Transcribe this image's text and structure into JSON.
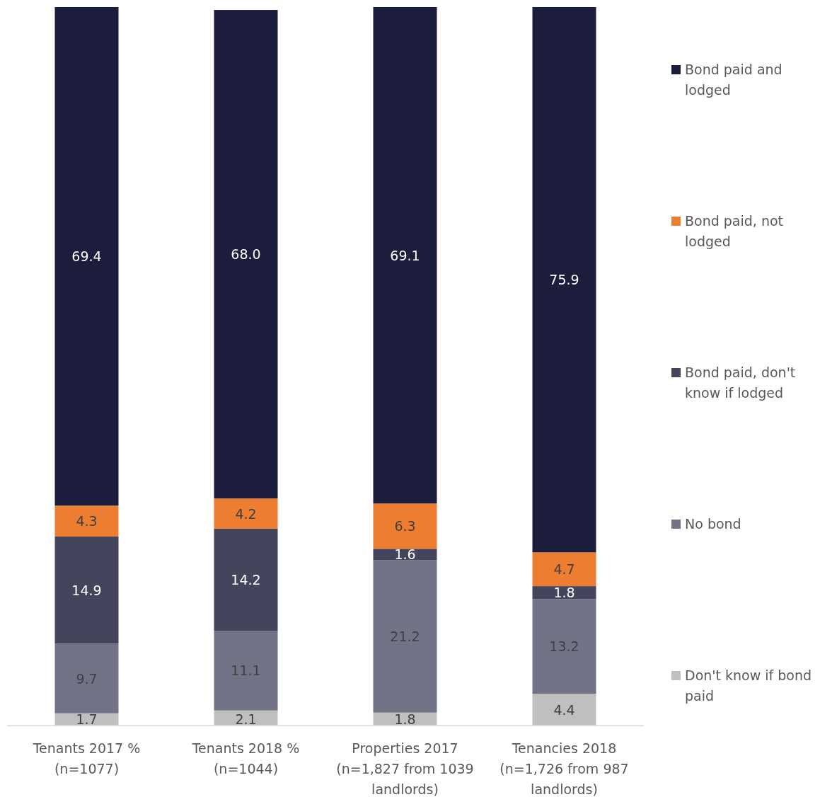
{
  "chart_data": {
    "type": "bar",
    "stacked": true,
    "legend": "right",
    "ylim": [
      0,
      100
    ],
    "categories": [
      "Tenants 2017 % (n=1077)",
      "Tenants 2018 % (n=1044)",
      "Properties 2017 (n=1,827 from 1039 landlords)",
      "Tenancies 2018 (n=1,726 from 987 landlords)"
    ],
    "series": [
      {
        "name": "Don't know if bond paid",
        "color": "#bfbfbf",
        "values": [
          1.7,
          2.1,
          1.8,
          4.4
        ],
        "value_labels": [
          "1.7",
          "2.1",
          "1.8",
          "4.4"
        ]
      },
      {
        "name": "No bond",
        "color": "#737387",
        "values": [
          9.7,
          11.1,
          21.2,
          13.2
        ],
        "value_labels": [
          "9.7",
          "11.1",
          "21.2",
          "13.2"
        ]
      },
      {
        "name": "Bond paid, don't know if lodged",
        "color": "#44445c",
        "values": [
          14.9,
          14.2,
          1.6,
          1.8
        ],
        "value_labels": [
          "14.9",
          "14.2",
          "1.6",
          "1.8"
        ]
      },
      {
        "name": "Bond paid, not lodged",
        "color": "#ed7d31",
        "values": [
          4.3,
          4.2,
          6.3,
          4.7
        ],
        "value_labels": [
          "4.3",
          "4.2",
          "6.3",
          "4.7"
        ]
      },
      {
        "name": "Bond paid and lodged",
        "color": "#1c1c3c",
        "values": [
          69.4,
          68.0,
          69.1,
          75.9
        ],
        "value_labels": [
          "69.4",
          "68.0",
          "69.1",
          "75.9"
        ]
      }
    ]
  }
}
